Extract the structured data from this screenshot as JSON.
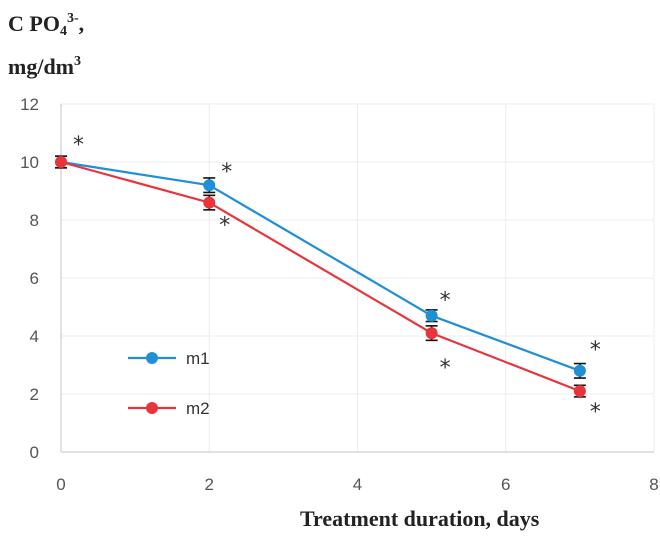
{
  "chart_data": {
    "type": "line",
    "ylabel_line1_prefix": "C PO",
    "ylabel_sub": "4",
    "ylabel_sup": "3-",
    "ylabel_line1_suffix": ",",
    "ylabel_line2_prefix": "mg/dm",
    "ylabel_line2_sup": "3",
    "xlabel": "Treatment duration, days",
    "xlim": [
      0,
      8
    ],
    "ylim": [
      0,
      12
    ],
    "x_ticks": [
      "0",
      "2",
      "4",
      "6",
      "8"
    ],
    "y_ticks": [
      "0",
      "2",
      "4",
      "6",
      "8",
      "10",
      "12"
    ],
    "grid": true,
    "legend_position": "center-left",
    "significance_marker": "*",
    "series": [
      {
        "name": "m1",
        "color": "#1f8fd6",
        "x": [
          0,
          2,
          5,
          7
        ],
        "y": [
          10.0,
          9.2,
          4.7,
          2.8
        ],
        "error": [
          0.2,
          0.25,
          0.2,
          0.25
        ]
      },
      {
        "name": "m2",
        "color": "#e8353b",
        "x": [
          0,
          2,
          5,
          7
        ],
        "y": [
          10.0,
          8.6,
          4.1,
          2.1
        ],
        "error": [
          0.2,
          0.25,
          0.25,
          0.2
        ]
      }
    ]
  }
}
